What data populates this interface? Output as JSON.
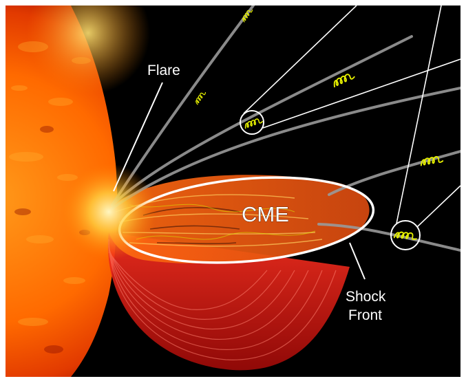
{
  "labels": {
    "flare": "Flare",
    "cme": "CME",
    "shock_line1": "Shock",
    "shock_line2": "Front"
  },
  "colors": {
    "background": "#000000",
    "sun_core": "#ffcc33",
    "sun_mid": "#ff6a00",
    "sun_edge": "#c01800",
    "cme_red": "#e01a10",
    "field_line": "#9a9a9a",
    "particle_spiral": "#e6f000",
    "callout_line": "#ffffff"
  },
  "icons": {
    "particle": "particle-spiral-icon",
    "zoom": "magnifier-circle-icon"
  }
}
